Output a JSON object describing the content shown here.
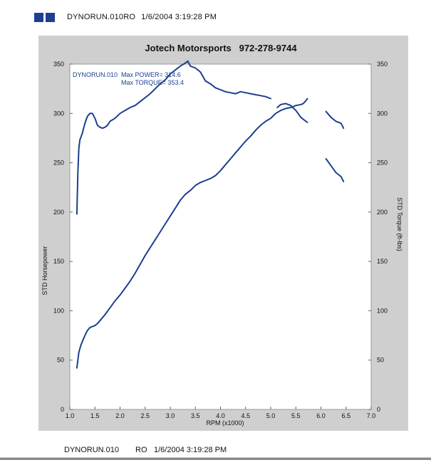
{
  "header": {
    "run_label": "DYNORUN.010RO",
    "timestamp": "1/6/2004 3:19:28 PM",
    "logo_color": "#1c3f8f"
  },
  "footer": {
    "run_name": "DYNORUN.010",
    "code": "RO",
    "timestamp": "1/6/2004 3:19:28 PM"
  },
  "chart_data": {
    "type": "line",
    "title": "Jotech Motorsports   972-278-9744",
    "xlabel": "RPM (x1000)",
    "ylabel": "STD Horsepower",
    "y2label": "STD Torque (ft-lbs)",
    "xlim": [
      1.0,
      7.0
    ],
    "ylim": [
      0,
      350
    ],
    "y2lim": [
      0,
      350
    ],
    "xticks": [
      "1.0",
      "1.5",
      "2.0",
      "2.5",
      "3.0",
      "3.5",
      "4.0",
      "4.5",
      "5.0",
      "5.5",
      "6.0",
      "6.5",
      "7.0"
    ],
    "yticks": [
      "0",
      "50",
      "100",
      "150",
      "200",
      "250",
      "300",
      "350"
    ],
    "y2ticks": [
      "0",
      "50",
      "100",
      "150",
      "200",
      "250",
      "300",
      "350"
    ],
    "grid": false,
    "line_color": "#1c3f8f",
    "annotations": [
      "DYNORUN.010  Max POWER= 314.6",
      "Max TORQUE= 353.4"
    ],
    "series": [
      {
        "key": "horsepower",
        "segments": [
          [
            [
              1.14,
              42
            ],
            [
              1.18,
              58
            ],
            [
              1.22,
              65
            ],
            [
              1.26,
              70
            ],
            [
              1.3,
              75
            ],
            [
              1.35,
              80
            ],
            [
              1.4,
              83
            ],
            [
              1.45,
              84
            ],
            [
              1.5,
              85
            ],
            [
              1.55,
              87
            ],
            [
              1.6,
              90
            ],
            [
              1.7,
              96
            ],
            [
              1.8,
              103
            ],
            [
              1.9,
              110
            ],
            [
              2.0,
              116
            ],
            [
              2.1,
              123
            ],
            [
              2.2,
              130
            ],
            [
              2.3,
              138
            ],
            [
              2.4,
              147
            ],
            [
              2.5,
              156
            ],
            [
              2.6,
              164
            ],
            [
              2.7,
              172
            ],
            [
              2.8,
              180
            ],
            [
              2.9,
              188
            ],
            [
              3.0,
              196
            ],
            [
              3.1,
              204
            ],
            [
              3.2,
              212
            ],
            [
              3.3,
              218
            ],
            [
              3.4,
              222
            ],
            [
              3.5,
              227
            ],
            [
              3.6,
              230
            ],
            [
              3.7,
              232
            ],
            [
              3.8,
              234
            ],
            [
              3.9,
              237
            ],
            [
              4.0,
              242
            ],
            [
              4.1,
              248
            ],
            [
              4.2,
              254
            ],
            [
              4.3,
              260
            ],
            [
              4.4,
              266
            ],
            [
              4.5,
              272
            ],
            [
              4.6,
              277
            ],
            [
              4.7,
              283
            ],
            [
              4.8,
              288
            ],
            [
              4.9,
              292
            ],
            [
              5.0,
              295
            ],
            [
              5.1,
              300
            ],
            [
              5.2,
              303
            ],
            [
              5.3,
              305
            ],
            [
              5.4,
              306
            ],
            [
              5.5,
              308
            ],
            [
              5.6,
              309
            ],
            [
              5.65,
              310
            ],
            [
              5.7,
              313
            ],
            [
              5.73,
              315
            ]
          ]
        ]
      },
      {
        "key": "torque",
        "segments": [
          [
            [
              1.14,
              198
            ],
            [
              1.16,
              240
            ],
            [
              1.18,
              265
            ],
            [
              1.2,
              273
            ],
            [
              1.25,
              280
            ],
            [
              1.3,
              290
            ],
            [
              1.35,
              297
            ],
            [
              1.4,
              300
            ],
            [
              1.45,
              300
            ],
            [
              1.5,
              295
            ],
            [
              1.55,
              288
            ],
            [
              1.6,
              286
            ],
            [
              1.65,
              285
            ],
            [
              1.7,
              286
            ],
            [
              1.75,
              288
            ],
            [
              1.8,
              292
            ],
            [
              1.9,
              295
            ],
            [
              2.0,
              300
            ],
            [
              2.1,
              303
            ],
            [
              2.2,
              306
            ],
            [
              2.3,
              308
            ],
            [
              2.4,
              312
            ],
            [
              2.5,
              316
            ],
            [
              2.6,
              320
            ],
            [
              2.7,
              325
            ],
            [
              2.8,
              330
            ],
            [
              2.9,
              334
            ],
            [
              3.0,
              340
            ],
            [
              3.1,
              344
            ],
            [
              3.2,
              348
            ],
            [
              3.3,
              351
            ],
            [
              3.35,
              353
            ],
            [
              3.4,
              348
            ],
            [
              3.5,
              346
            ],
            [
              3.6,
              342
            ],
            [
              3.7,
              333
            ],
            [
              3.8,
              330
            ],
            [
              3.9,
              326
            ],
            [
              4.0,
              324
            ],
            [
              4.1,
              322
            ],
            [
              4.2,
              321
            ],
            [
              4.3,
              320
            ],
            [
              4.4,
              322
            ],
            [
              4.5,
              321
            ],
            [
              4.6,
              320
            ],
            [
              4.7,
              319
            ],
            [
              4.8,
              318
            ],
            [
              4.9,
              317
            ],
            [
              5.0,
              315
            ]
          ],
          [
            [
              5.13,
              306
            ],
            [
              5.2,
              309
            ],
            [
              5.3,
              310
            ],
            [
              5.4,
              308
            ],
            [
              5.5,
              303
            ],
            [
              5.6,
              296
            ],
            [
              5.7,
              292
            ],
            [
              5.73,
              291
            ]
          ],
          [
            [
              6.1,
              302
            ],
            [
              6.2,
              296
            ],
            [
              6.3,
              292
            ],
            [
              6.4,
              290
            ],
            [
              6.45,
              285
            ]
          ],
          [
            [
              6.1,
              254
            ],
            [
              6.2,
              247
            ],
            [
              6.3,
              240
            ],
            [
              6.4,
              236
            ],
            [
              6.45,
              231
            ]
          ]
        ]
      }
    ]
  }
}
